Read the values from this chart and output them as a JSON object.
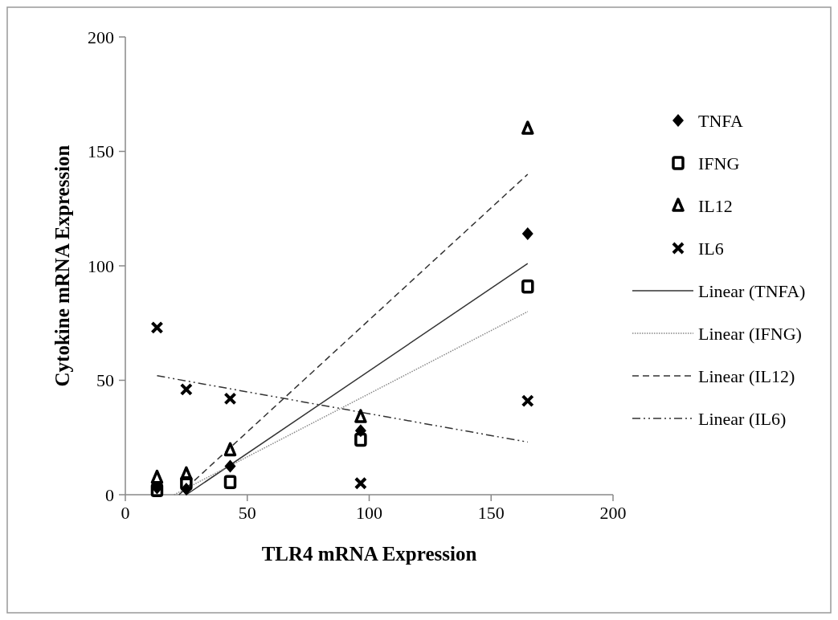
{
  "chart_data": {
    "type": "scatter",
    "xlabel": "TLR4 mRNA Expression",
    "ylabel": "Cytokine mRNA Expression",
    "xlim": [
      0,
      200
    ],
    "xticks": [
      0,
      50,
      100,
      150,
      200
    ],
    "ylim": [
      0,
      200
    ],
    "yticks": [
      0,
      50,
      100,
      150,
      200
    ],
    "grid": false,
    "legend": "right",
    "series": [
      {
        "name": "TNFA",
        "marker": "diamond",
        "color": "#000000",
        "x": [
          13,
          25,
          43,
          96.5,
          165
        ],
        "values": [
          3,
          2.5,
          12.5,
          28,
          114
        ]
      },
      {
        "name": "IFNG",
        "marker": "square",
        "color": "#000000",
        "x": [
          13,
          25,
          43,
          96.5,
          165
        ],
        "values": [
          2,
          5,
          5.5,
          24,
          91
        ]
      },
      {
        "name": "IL12",
        "marker": "triangle",
        "color": "#000000",
        "x": [
          13,
          25,
          43,
          96.5,
          165
        ],
        "values": [
          7.5,
          9,
          19.5,
          34,
          160
        ]
      },
      {
        "name": "IL6",
        "marker": "cross",
        "color": "#000000",
        "x": [
          13,
          25,
          43,
          96.5,
          165
        ],
        "values": [
          73,
          46,
          42,
          5,
          41
        ]
      },
      {
        "name": "Linear (TNFA)",
        "type": "line",
        "line_style": "solid",
        "color": "#333333",
        "x": [
          25,
          165
        ],
        "values": [
          0,
          101
        ]
      },
      {
        "name": "Linear (IFNG)",
        "type": "line",
        "line_style": "dotted",
        "color": "#888888",
        "x": [
          20,
          165
        ],
        "values": [
          0,
          80
        ]
      },
      {
        "name": "Linear (IL12)",
        "type": "line",
        "line_style": "dashed",
        "color": "#333333",
        "x": [
          22,
          165
        ],
        "values": [
          0,
          140
        ]
      },
      {
        "name": "Linear (IL6)",
        "type": "line",
        "line_style": "dashdot",
        "color": "#333333",
        "x": [
          13,
          165
        ],
        "values": [
          52,
          23
        ]
      }
    ]
  }
}
